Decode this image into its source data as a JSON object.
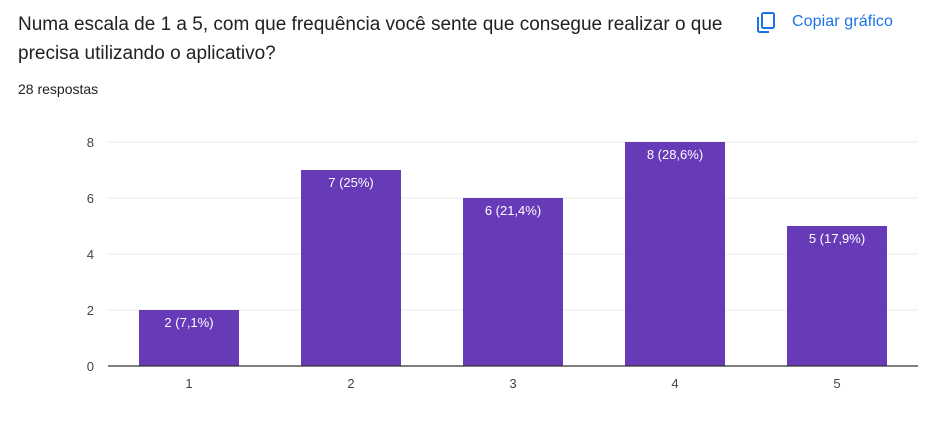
{
  "question": {
    "title": "Numa escala de 1 a 5, com que frequência você sente que consegue realizar o que precisa utilizando o aplicativo?",
    "response_count": "28 respostas"
  },
  "toolbar": {
    "copy_label": "Copiar gráfico",
    "copy_icon": "copy-icon"
  },
  "colors": {
    "bar": "#673ab7",
    "accent": "#1a73e8",
    "grid": "#e8e8e8",
    "axis": "#333333"
  },
  "chart_data": {
    "type": "bar",
    "categories": [
      "1",
      "2",
      "3",
      "4",
      "5"
    ],
    "values": [
      2,
      7,
      6,
      8,
      5
    ],
    "data_labels": [
      "2 (7,1%)",
      "7 (25%)",
      "6 (21,4%)",
      "8 (28,6%)",
      "5 (17,9%)"
    ],
    "y_ticks": [
      "0",
      "2",
      "4",
      "6",
      "8"
    ],
    "ylim": [
      0,
      8
    ],
    "grid": true,
    "title": "",
    "xlabel": "",
    "ylabel": ""
  }
}
